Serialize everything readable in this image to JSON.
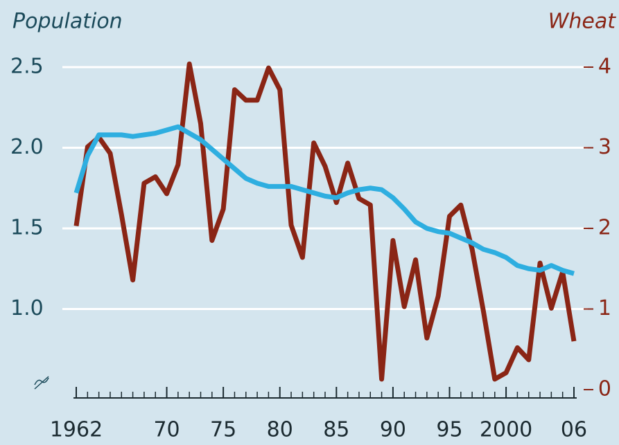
{
  "chart_data": {
    "type": "line",
    "y_axis_label": "Population",
    "y2_axis_label": "Wheat",
    "x": [
      1962,
      1963,
      1964,
      1965,
      1966,
      1967,
      1968,
      1969,
      1970,
      1971,
      1972,
      1973,
      1974,
      1975,
      1976,
      1977,
      1978,
      1979,
      1980,
      1981,
      1982,
      1983,
      1984,
      1985,
      1986,
      1987,
      1988,
      1989,
      1990,
      1991,
      1992,
      1993,
      1994,
      1995,
      1996,
      1997,
      1998,
      1999,
      2000,
      2001,
      2002,
      2003,
      2004,
      2005,
      2006
    ],
    "series": [
      {
        "name": "Population",
        "color": "#2eaee0",
        "values": [
          1.72,
          1.95,
          2.08,
          2.08,
          2.08,
          2.07,
          2.08,
          2.09,
          2.11,
          2.13,
          2.09,
          2.05,
          1.99,
          1.93,
          1.87,
          1.81,
          1.78,
          1.76,
          1.76,
          1.76,
          1.74,
          1.72,
          1.7,
          1.69,
          1.72,
          1.74,
          1.75,
          1.74,
          1.69,
          1.62,
          1.54,
          1.5,
          1.48,
          1.47,
          1.44,
          1.41,
          1.37,
          1.35,
          1.32,
          1.27,
          1.25,
          1.24,
          1.27,
          1.24,
          1.22
        ]
      },
      {
        "name": "Wheat",
        "color": "#8a2515",
        "axis": "y2",
        "values": [
          2.03,
          3.01,
          3.13,
          2.93,
          2.17,
          1.36,
          2.56,
          2.64,
          2.43,
          2.79,
          4.04,
          3.3,
          1.85,
          2.24,
          3.72,
          3.59,
          3.59,
          3.99,
          3.72,
          2.04,
          1.64,
          3.06,
          2.77,
          2.32,
          2.81,
          2.37,
          2.29,
          0.13,
          1.85,
          1.03,
          1.61,
          0.64,
          1.16,
          2.15,
          2.29,
          1.74,
          0.97,
          0.13,
          0.21,
          0.52,
          0.37,
          1.57,
          1.01,
          1.46,
          0.6
        ]
      }
    ],
    "xlim": [
      1962,
      2006
    ],
    "xticks": [
      1962,
      {
        "value": 1970,
        "label": "70"
      },
      {
        "value": 1975,
        "label": "75"
      },
      {
        "value": 1980,
        "label": "80"
      },
      {
        "value": 1985,
        "label": "85"
      },
      {
        "value": 1990,
        "label": "90"
      },
      {
        "value": 1995,
        "label": "95"
      },
      2000,
      {
        "value": 2006,
        "label": "06"
      }
    ],
    "ylim": [
      0.5,
      2.5
    ],
    "yticks": [
      {
        "value": 1.0,
        "label": "1.0"
      },
      1.5,
      {
        "value": 2.0,
        "label": "2.0"
      },
      2.5
    ],
    "y2lim": [
      0,
      4
    ],
    "y2ticks": [
      0,
      1,
      2,
      3,
      4
    ],
    "grid": true
  }
}
